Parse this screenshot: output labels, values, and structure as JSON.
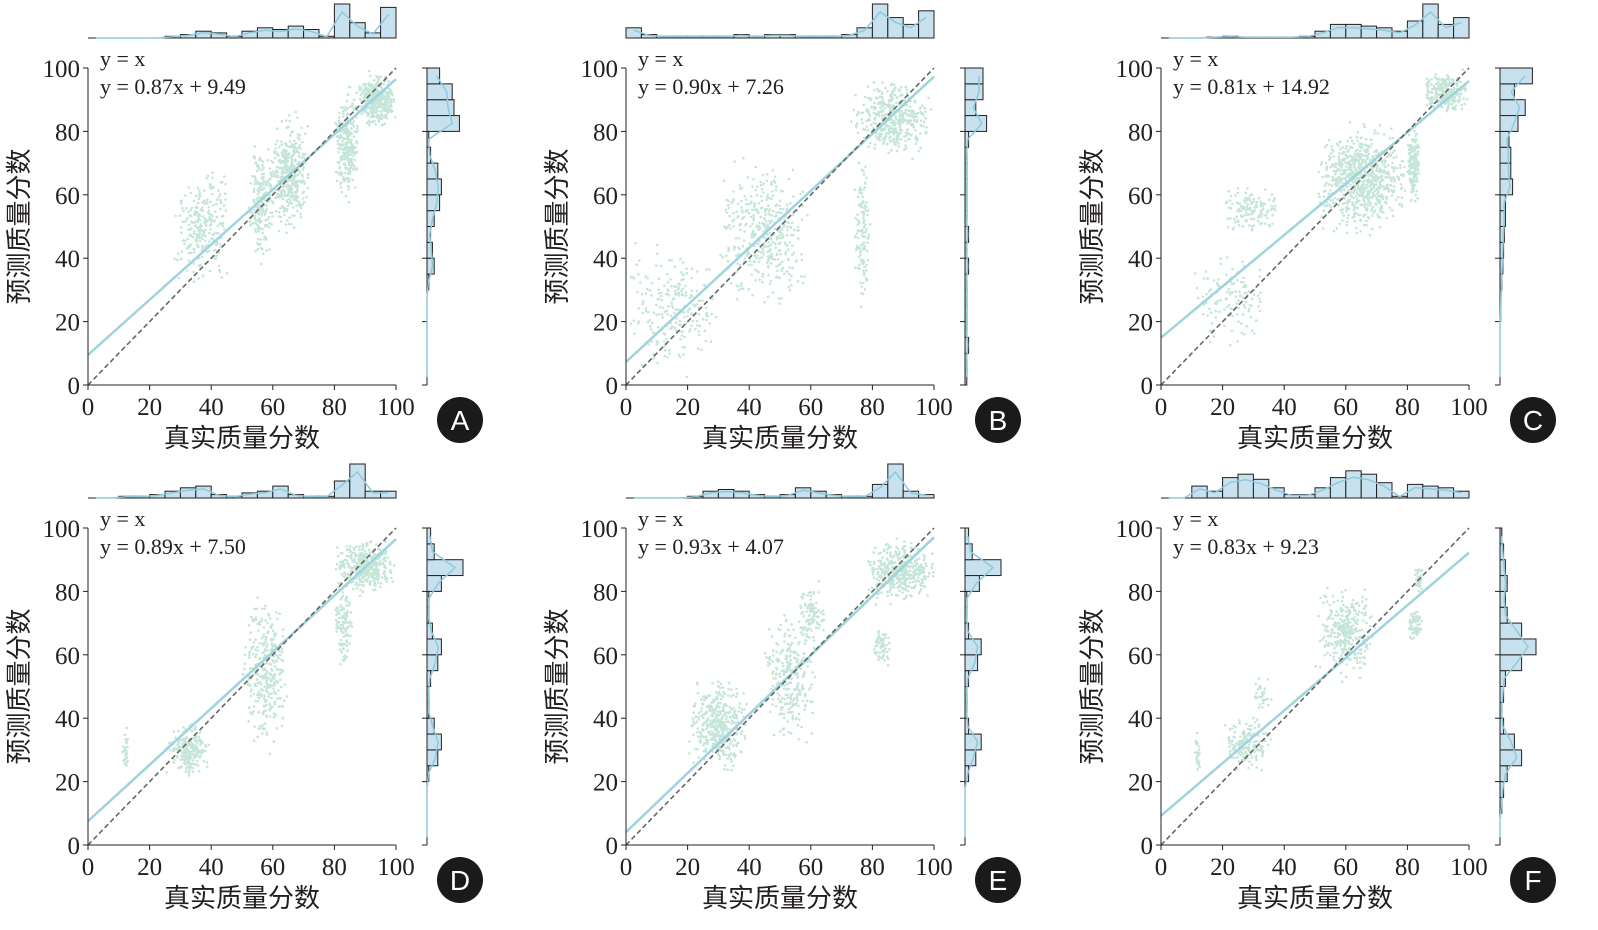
{
  "chart_data": [
    {
      "panel": "A",
      "type": "scatter",
      "xlabel": "真实质量分数",
      "ylabel": "预测质量分数",
      "xlim": [
        0,
        100
      ],
      "ylim": [
        0,
        100
      ],
      "xticks": [
        "0",
        "20",
        "40",
        "60",
        "80",
        "100"
      ],
      "yticks": [
        "0",
        "20",
        "40",
        "60",
        "80",
        "100"
      ],
      "legend": [
        "y = x",
        "y = 0.87x + 9.49"
      ],
      "fit": {
        "slope": 0.87,
        "intercept": 9.49
      },
      "clusters": [
        [
          28,
          46,
          30,
          70,
          260
        ],
        [
          52,
          60,
          35,
          80,
          200
        ],
        [
          58,
          72,
          45,
          88,
          420
        ],
        [
          80,
          88,
          55,
          96,
          260
        ],
        [
          87,
          100,
          80,
          100,
          380
        ]
      ],
      "hist_x": [
        0,
        0,
        0,
        0,
        0,
        0.05,
        0.1,
        0.2,
        0.15,
        0.05,
        0.2,
        0.3,
        0.25,
        0.35,
        0.25,
        0.05,
        1.0,
        0.45,
        0.15,
        0.9
      ],
      "hist_y": [
        0,
        0,
        0,
        0,
        0,
        0,
        0.05,
        0.2,
        0.15,
        0.1,
        0.2,
        0.35,
        0.4,
        0.3,
        0.1,
        0.05,
        0.9,
        0.75,
        0.7,
        0.35
      ]
    },
    {
      "panel": "B",
      "type": "scatter",
      "xlabel": "真实质量分数",
      "ylabel": "预测质量分数",
      "xlim": [
        0,
        100
      ],
      "ylim": [
        0,
        100
      ],
      "xticks": [
        "0",
        "20",
        "40",
        "60",
        "80",
        "100"
      ],
      "yticks": [
        "0",
        "20",
        "40",
        "60",
        "80",
        "100"
      ],
      "legend": [
        "y = x",
        "y = 0.90x + 7.26"
      ],
      "fit": {
        "slope": 0.9,
        "intercept": 7.26
      },
      "clusters": [
        [
          0,
          30,
          0,
          50,
          220
        ],
        [
          30,
          60,
          20,
          75,
          420
        ],
        [
          74,
          80,
          20,
          82,
          120
        ],
        [
          73,
          100,
          70,
          98,
          420
        ]
      ],
      "hist_x": [
        0.3,
        0.1,
        0.05,
        0.05,
        0.05,
        0.05,
        0.05,
        0.1,
        0.05,
        0.1,
        0.1,
        0.05,
        0.05,
        0.05,
        0.1,
        0.3,
        1.0,
        0.6,
        0.4,
        0.8
      ],
      "hist_y": [
        0.05,
        0.05,
        0.1,
        0.05,
        0.05,
        0.05,
        0.05,
        0.1,
        0.05,
        0.1,
        0.05,
        0.05,
        0.05,
        0.05,
        0.05,
        0.1,
        0.6,
        0.3,
        0.5,
        0.5
      ]
    },
    {
      "panel": "C",
      "type": "scatter",
      "xlabel": "真实质量分数",
      "ylabel": "预测质量分数",
      "xlim": [
        0,
        100
      ],
      "ylim": [
        0,
        100
      ],
      "xticks": [
        "0",
        "20",
        "40",
        "60",
        "80",
        "100"
      ],
      "yticks": [
        "0",
        "20",
        "40",
        "60",
        "80",
        "100"
      ],
      "legend": [
        "y = x",
        "y = 0.81x + 14.92"
      ],
      "fit": {
        "slope": 0.81,
        "intercept": 14.92
      },
      "clusters": [
        [
          10,
          35,
          10,
          45,
          130
        ],
        [
          20,
          38,
          45,
          65,
          130
        ],
        [
          50,
          80,
          45,
          85,
          750
        ],
        [
          80,
          84,
          55,
          85,
          160
        ],
        [
          85,
          100,
          85,
          100,
          260
        ]
      ],
      "hist_x": [
        0,
        0,
        0,
        0.03,
        0.05,
        0.03,
        0.03,
        0.03,
        0.03,
        0.05,
        0.2,
        0.4,
        0.4,
        0.35,
        0.3,
        0.2,
        0.5,
        1.0,
        0.4,
        0.6
      ],
      "hist_y": [
        0,
        0,
        0,
        0,
        0.02,
        0.03,
        0.05,
        0.08,
        0.1,
        0.12,
        0.15,
        0.15,
        0.35,
        0.3,
        0.3,
        0.25,
        0.5,
        0.7,
        0.4,
        0.9
      ]
    },
    {
      "panel": "D",
      "type": "scatter",
      "xlabel": "真实质量分数",
      "ylabel": "预测质量分数",
      "xlim": [
        0,
        100
      ],
      "ylim": [
        0,
        100
      ],
      "xticks": [
        "0",
        "20",
        "40",
        "60",
        "80",
        "100"
      ],
      "yticks": [
        "0",
        "20",
        "40",
        "60",
        "80",
        "100"
      ],
      "legend": [
        "y = x",
        "y = 0.89x + 7.50"
      ],
      "fit": {
        "slope": 0.89,
        "intercept": 7.5
      },
      "clusters": [
        [
          11,
          13,
          22,
          38,
          30
        ],
        [
          25,
          40,
          20,
          40,
          220
        ],
        [
          50,
          65,
          25,
          85,
          320
        ],
        [
          80,
          86,
          55,
          85,
          110
        ],
        [
          80,
          100,
          78,
          98,
          360
        ]
      ],
      "hist_x": [
        0,
        0,
        0.05,
        0.05,
        0.1,
        0.2,
        0.3,
        0.35,
        0.1,
        0.05,
        0.15,
        0.2,
        0.35,
        0.1,
        0.05,
        0.05,
        0.5,
        1.0,
        0.2,
        0.2
      ],
      "hist_y": [
        0,
        0,
        0,
        0,
        0.05,
        0.3,
        0.4,
        0.2,
        0.05,
        0.05,
        0.1,
        0.3,
        0.4,
        0.15,
        0.05,
        0.05,
        0.4,
        1.0,
        0.2,
        0.1
      ]
    },
    {
      "panel": "E",
      "type": "scatter",
      "xlabel": "真实质量分数",
      "ylabel": "预测质量分数",
      "xlim": [
        0,
        100
      ],
      "ylim": [
        0,
        100
      ],
      "xticks": [
        "0",
        "20",
        "40",
        "60",
        "80",
        "100"
      ],
      "yticks": [
        "0",
        "20",
        "40",
        "60",
        "80",
        "100"
      ],
      "legend": [
        "y = x",
        "y = 0.93x + 4.07"
      ],
      "fit": {
        "slope": 0.93,
        "intercept": 4.07
      },
      "clusters": [
        [
          20,
          40,
          20,
          55,
          420
        ],
        [
          45,
          62,
          30,
          75,
          260
        ],
        [
          55,
          65,
          60,
          85,
          100
        ],
        [
          80,
          86,
          55,
          70,
          60
        ],
        [
          78,
          100,
          75,
          98,
          420
        ]
      ],
      "hist_x": [
        0,
        0,
        0,
        0,
        0.05,
        0.2,
        0.25,
        0.2,
        0.1,
        0.05,
        0.1,
        0.3,
        0.2,
        0.1,
        0.05,
        0.05,
        0.4,
        1.0,
        0.2,
        0.1
      ],
      "hist_y": [
        0,
        0,
        0,
        0,
        0.1,
        0.3,
        0.45,
        0.1,
        0.05,
        0.05,
        0.1,
        0.35,
        0.45,
        0.1,
        0.05,
        0.05,
        0.4,
        1.0,
        0.2,
        0.1
      ]
    },
    {
      "panel": "F",
      "type": "scatter",
      "xlabel": "真实质量分数",
      "ylabel": "预测质量分数",
      "xlim": [
        0,
        100
      ],
      "ylim": [
        0,
        100
      ],
      "xticks": [
        "0",
        "20",
        "40",
        "60",
        "80",
        "100"
      ],
      "yticks": [
        "0",
        "20",
        "40",
        "60",
        "80",
        "100"
      ],
      "legend": [
        "y = x",
        "y = 0.83x + 9.23"
      ],
      "fit": {
        "slope": 0.83,
        "intercept": 9.23
      },
      "clusters": [
        [
          11,
          13,
          20,
          38,
          25
        ],
        [
          20,
          36,
          22,
          42,
          170
        ],
        [
          30,
          36,
          40,
          55,
          30
        ],
        [
          50,
          70,
          50,
          85,
          330
        ],
        [
          80,
          85,
          63,
          76,
          70
        ],
        [
          82,
          86,
          78,
          90,
          30
        ]
      ],
      "hist_x": [
        0,
        0,
        0.35,
        0.2,
        0.6,
        0.7,
        0.55,
        0.3,
        0.1,
        0.1,
        0.3,
        0.6,
        0.8,
        0.7,
        0.45,
        0.05,
        0.4,
        0.35,
        0.3,
        0.2
      ],
      "hist_y": [
        0,
        0,
        0.05,
        0.1,
        0.2,
        0.6,
        0.4,
        0.1,
        0.05,
        0.1,
        0.15,
        0.6,
        1.0,
        0.6,
        0.2,
        0.15,
        0.2,
        0.15,
        0.1,
        0.05
      ]
    }
  ],
  "colors": {
    "scatter": "#c5e5d9",
    "fit_line": "#9fd4dd",
    "identity_line": "#666666",
    "hist_fill": "#c8e1ee",
    "hist_edge": "#231f20",
    "kde": "#8ec9dc",
    "label_bg": "#1a1a1a"
  }
}
